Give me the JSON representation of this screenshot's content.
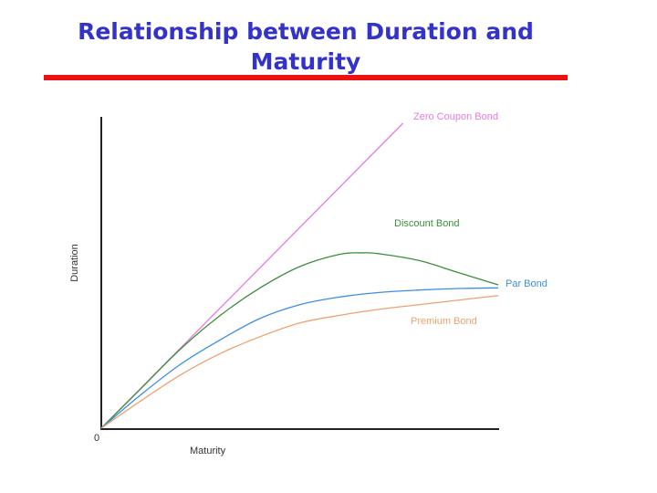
{
  "title": "Relationship between Duration and Maturity",
  "colors": {
    "title": "#3333cc",
    "rule": "#ee1111"
  },
  "chart_data": {
    "type": "line",
    "title": "Relationship between Duration and Maturity",
    "xlabel": "Maturity",
    "ylabel": "Duration",
    "origin_label": "0",
    "xlim": [
      0,
      100
    ],
    "ylim": [
      0,
      100
    ],
    "grid": false,
    "legend": "inline labels at line ends",
    "series": [
      {
        "name": "Zero Coupon Bond",
        "color": "#e879e8",
        "x": [
          0,
          76
        ],
        "y": [
          0,
          100
        ]
      },
      {
        "name": "Discount Bond",
        "color": "#3a8f3a",
        "x": [
          0,
          10,
          20,
          30,
          40,
          50,
          60,
          66,
          70,
          80,
          90,
          100
        ],
        "y": [
          0,
          13,
          26,
          37,
          46,
          53,
          57,
          57.5,
          57.2,
          55,
          51,
          47
        ]
      },
      {
        "name": "Par Bond",
        "color": "#3b8fe0",
        "x": [
          0,
          10,
          20,
          30,
          40,
          50,
          60,
          70,
          80,
          90,
          100
        ],
        "y": [
          0,
          11,
          21,
          29,
          36,
          40.5,
          43,
          44.5,
          45.3,
          45.8,
          46
        ]
      },
      {
        "name": "Premium Bond",
        "color": "#f0a070",
        "x": [
          0,
          10,
          20,
          30,
          40,
          50,
          60,
          70,
          80,
          90,
          100
        ],
        "y": [
          0,
          9,
          17.5,
          24.5,
          30,
          34.5,
          37,
          39,
          40.5,
          42,
          43.5
        ]
      }
    ]
  }
}
